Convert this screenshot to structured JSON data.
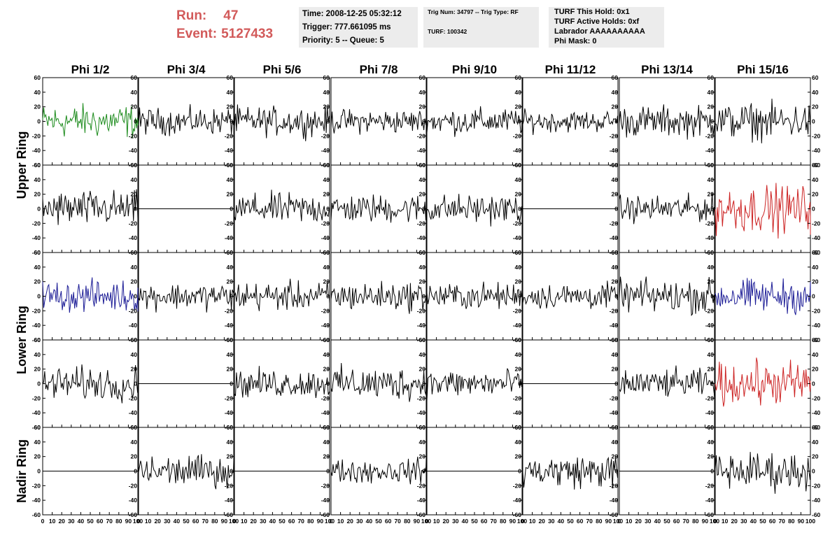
{
  "header": {
    "run_label": "Run:",
    "run_value": "47",
    "event_label": "Event:",
    "event_value": "5127433",
    "time": "Time: 2008-12-25 05:32:12",
    "trigger": "Trigger: 777.661095 ms",
    "priority": "Priority: 5 -- Queue: 5",
    "trig_num": "Trig Num: 34797 -- Trig Type: RF",
    "turf": "TURF: 100342",
    "turf_this_hold": "TURF This Hold: 0x1",
    "turf_active_holds": "TURF Active Holds: 0xf",
    "labrador": "Labrador AAAAAAAAAA",
    "phi_mask": "Phi Mask: 0"
  },
  "chart_data": {
    "type": "line",
    "columns": [
      "Phi 1/2",
      "Phi 3/4",
      "Phi 5/6",
      "Phi 7/8",
      "Phi 9/10",
      "Phi 11/12",
      "Phi 13/14",
      "Phi 15/16"
    ],
    "row_labels": [
      {
        "label": "Upper Ring",
        "rows": [
          0,
          1
        ]
      },
      {
        "label": "Lower Ring",
        "rows": [
          2,
          3
        ]
      },
      {
        "label": "Nadir Ring",
        "rows": [
          4
        ]
      }
    ],
    "xlim": [
      0,
      100
    ],
    "ylim": [
      -60,
      60
    ],
    "x_ticks": [
      0,
      10,
      20,
      30,
      40,
      50,
      60,
      70,
      80,
      90,
      100
    ],
    "x_tick_labels": [
      "0",
      "10",
      "20",
      "30",
      "40",
      "50",
      "60",
      "70",
      "80",
      "90",
      "100"
    ],
    "y_ticks": [
      -60,
      -40,
      -20,
      0,
      20,
      40,
      60
    ],
    "y_tick_labels": [
      "-60",
      "-40",
      "-20",
      "0",
      "20",
      "40",
      "60"
    ],
    "waveform_samples": 96,
    "colors": {
      "black": "#000000",
      "green": "#1e8c1e",
      "red": "#cc2222",
      "blue": "#1c1c96"
    },
    "panels": [
      [
        {
          "color": "green",
          "amp": 14,
          "flat": false
        },
        {
          "color": "black",
          "amp": 11,
          "flat": false
        },
        {
          "color": "black",
          "amp": 12,
          "flat": false
        },
        {
          "color": "black",
          "amp": 10,
          "flat": false
        },
        {
          "color": "black",
          "amp": 11,
          "flat": false
        },
        {
          "color": "black",
          "amp": 9,
          "flat": false
        },
        {
          "color": "black",
          "amp": 13,
          "flat": false
        },
        {
          "color": "black",
          "amp": 15,
          "flat": false
        }
      ],
      [
        {
          "color": "black",
          "amp": 15,
          "flat": false
        },
        {
          "color": "black",
          "amp": 0,
          "flat": true
        },
        {
          "color": "black",
          "amp": 13,
          "flat": false
        },
        {
          "color": "black",
          "amp": 12,
          "flat": false
        },
        {
          "color": "black",
          "amp": 12,
          "flat": false
        },
        {
          "color": "black",
          "amp": 0,
          "flat": true
        },
        {
          "color": "black",
          "amp": 11,
          "flat": false
        },
        {
          "color": "red",
          "amp": 20,
          "flat": false
        }
      ],
      [
        {
          "color": "blue",
          "amp": 13,
          "flat": false
        },
        {
          "color": "black",
          "amp": 11,
          "flat": false
        },
        {
          "color": "black",
          "amp": 12,
          "flat": false
        },
        {
          "color": "black",
          "amp": 12,
          "flat": false
        },
        {
          "color": "black",
          "amp": 11,
          "flat": false
        },
        {
          "color": "black",
          "amp": 11,
          "flat": false
        },
        {
          "color": "black",
          "amp": 14,
          "flat": false
        },
        {
          "color": "blue",
          "amp": 14,
          "flat": false
        }
      ],
      [
        {
          "color": "black",
          "amp": 14,
          "flat": false
        },
        {
          "color": "black",
          "amp": 0,
          "flat": true
        },
        {
          "color": "black",
          "amp": 12,
          "flat": false
        },
        {
          "color": "black",
          "amp": 14,
          "flat": false
        },
        {
          "color": "black",
          "amp": 12,
          "flat": false
        },
        {
          "color": "black",
          "amp": 0,
          "flat": true
        },
        {
          "color": "black",
          "amp": 12,
          "flat": false
        },
        {
          "color": "red",
          "amp": 18,
          "flat": false
        }
      ],
      [
        {
          "color": "black",
          "amp": 0,
          "flat": true
        },
        {
          "color": "black",
          "amp": 13,
          "flat": false
        },
        {
          "color": "black",
          "amp": 0,
          "flat": true
        },
        {
          "color": "black",
          "amp": 10,
          "flat": false
        },
        {
          "color": "black",
          "amp": 0,
          "flat": true
        },
        {
          "color": "black",
          "amp": 14,
          "flat": false
        },
        {
          "color": "black",
          "amp": 0,
          "flat": true
        },
        {
          "color": "black",
          "amp": 16,
          "flat": false
        }
      ]
    ]
  }
}
